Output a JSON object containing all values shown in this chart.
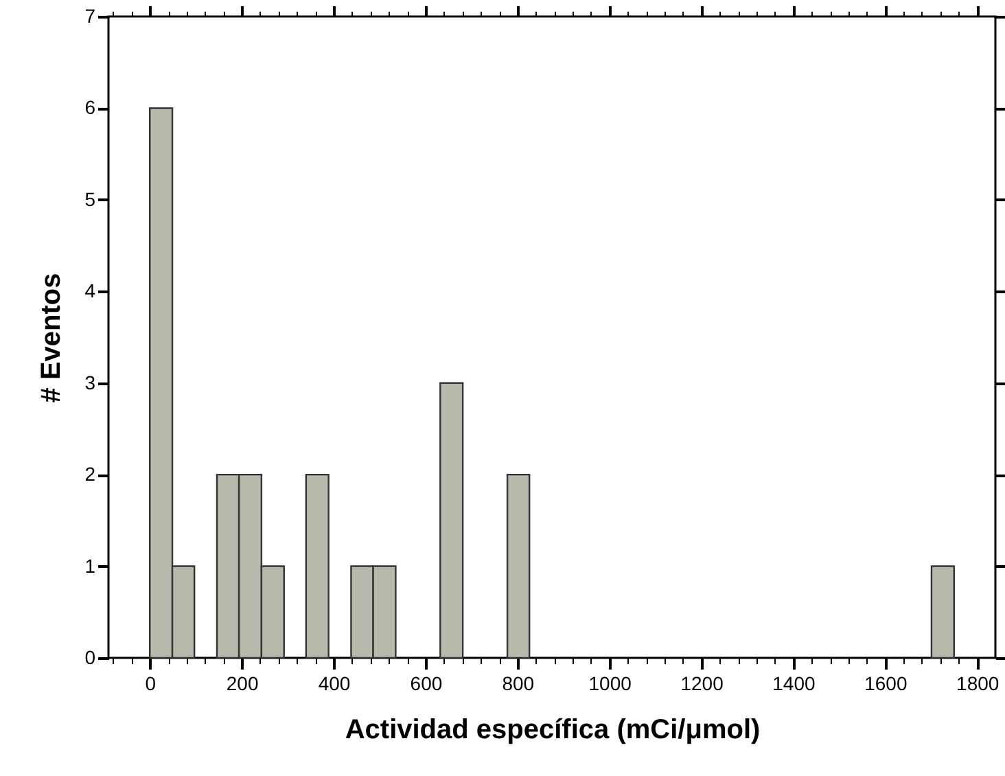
{
  "chart_data": {
    "type": "histogram",
    "xlabel": "Actividad específica (mCi/μmol)",
    "ylabel": "# Eventos",
    "color": "#b8b8ac",
    "bins": [
      0,
      49,
      97,
      146,
      194,
      243,
      292,
      340,
      389,
      438,
      486,
      535,
      632,
      681,
      778,
      826,
      1701,
      1750
    ],
    "values": [
      6,
      1,
      0,
      2,
      2,
      1,
      0,
      2,
      0,
      1,
      1,
      0,
      3,
      0,
      2,
      0,
      1
    ],
    "xlim": [
      -90,
      1840
    ],
    "xticks": [
      {
        "value": -80,
        "label": null
      },
      {
        "value": -40,
        "label": null
      },
      0,
      {
        "value": 40,
        "label": null
      },
      {
        "value": 80,
        "label": null
      },
      {
        "value": 120,
        "label": null
      },
      {
        "value": 160,
        "label": null
      },
      200,
      {
        "value": 240,
        "label": null
      },
      {
        "value": 280,
        "label": null
      },
      {
        "value": 320,
        "label": null
      },
      {
        "value": 360,
        "label": null
      },
      400,
      {
        "value": 440,
        "label": null
      },
      {
        "value": 480,
        "label": null
      },
      {
        "value": 520,
        "label": null
      },
      {
        "value": 560,
        "label": null
      },
      600,
      {
        "value": 640,
        "label": null
      },
      {
        "value": 680,
        "label": null
      },
      {
        "value": 720,
        "label": null
      },
      {
        "value": 760,
        "label": null
      },
      800,
      {
        "value": 840,
        "label": null
      },
      {
        "value": 880,
        "label": null
      },
      {
        "value": 920,
        "label": null
      },
      {
        "value": 960,
        "label": null
      },
      1000,
      {
        "value": 1040,
        "label": null
      },
      {
        "value": 1080,
        "label": null
      },
      {
        "value": 1120,
        "label": null
      },
      {
        "value": 1160,
        "label": null
      },
      1200,
      {
        "value": 1240,
        "label": null
      },
      {
        "value": 1280,
        "label": null
      },
      {
        "value": 1320,
        "label": null
      },
      {
        "value": 1360,
        "label": null
      },
      1400,
      {
        "value": 1440,
        "label": null
      },
      {
        "value": 1480,
        "label": null
      },
      {
        "value": 1520,
        "label": null
      },
      {
        "value": 1560,
        "label": null
      },
      1600,
      {
        "value": 1640,
        "label": null
      },
      {
        "value": 1680,
        "label": null
      },
      {
        "value": 1720,
        "label": null
      },
      {
        "value": 1760,
        "label": null
      },
      1800
    ],
    "ylim": [
      0,
      7
    ],
    "yticks": [
      0,
      1,
      2,
      3,
      4,
      5,
      6,
      7
    ],
    "grid": false
  }
}
